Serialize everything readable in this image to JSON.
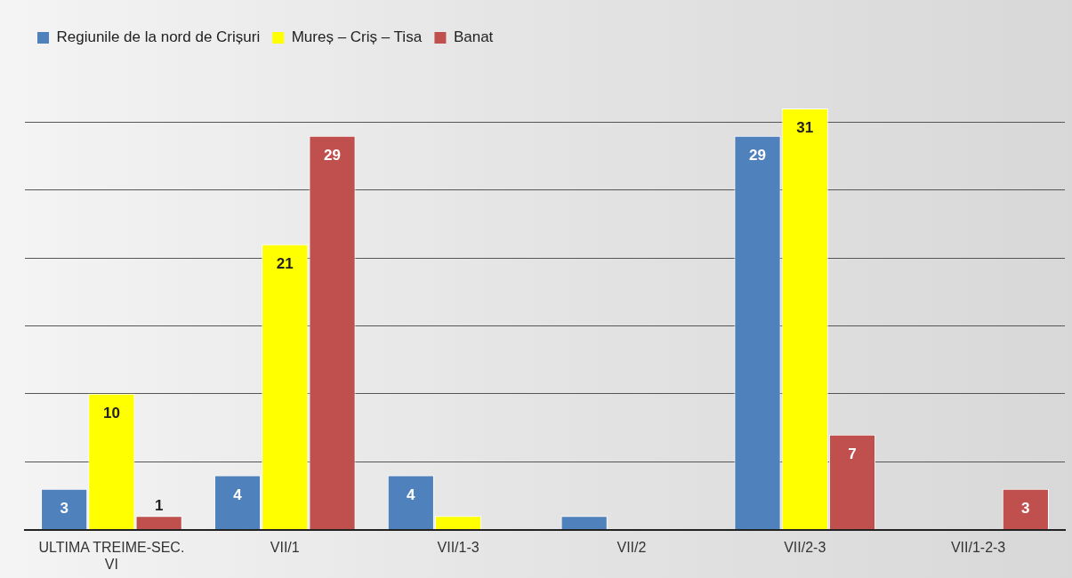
{
  "chart_data": {
    "type": "bar",
    "categories": [
      "ULTIMA TREIME-SEC. VI",
      "VII/1",
      "VII/1-3",
      "VII/2",
      "VII/2-3",
      "VII/1-2-3"
    ],
    "series": [
      {
        "name": "Regiunile de la nord de Crișuri",
        "color": "#4f81bd",
        "values": [
          3,
          4,
          4,
          1,
          29,
          0
        ],
        "value_labels": [
          "3",
          "4",
          "4",
          null,
          "29",
          null
        ]
      },
      {
        "name": "Mureș – Criș – Tisa",
        "color": "#ffff00",
        "values": [
          10,
          21,
          1,
          0,
          31,
          0
        ],
        "value_labels": [
          "10",
          "21",
          null,
          null,
          "31",
          null
        ]
      },
      {
        "name": "Banat",
        "color": "#c0504d",
        "values": [
          1,
          29,
          0,
          0,
          7,
          3
        ],
        "value_labels": [
          "1",
          "29",
          null,
          null,
          "7",
          "3"
        ]
      }
    ],
    "yticks": [
      {
        "value": 0,
        "label": null
      },
      {
        "value": 5,
        "label": null
      },
      {
        "value": 10,
        "label": null
      },
      {
        "value": 15,
        "label": null
      },
      {
        "value": 20,
        "label": null
      },
      {
        "value": 25,
        "label": null
      },
      {
        "value": 30,
        "label": null
      }
    ],
    "grid": "y",
    "legend": "top left",
    "tick_labels": "x"
  }
}
